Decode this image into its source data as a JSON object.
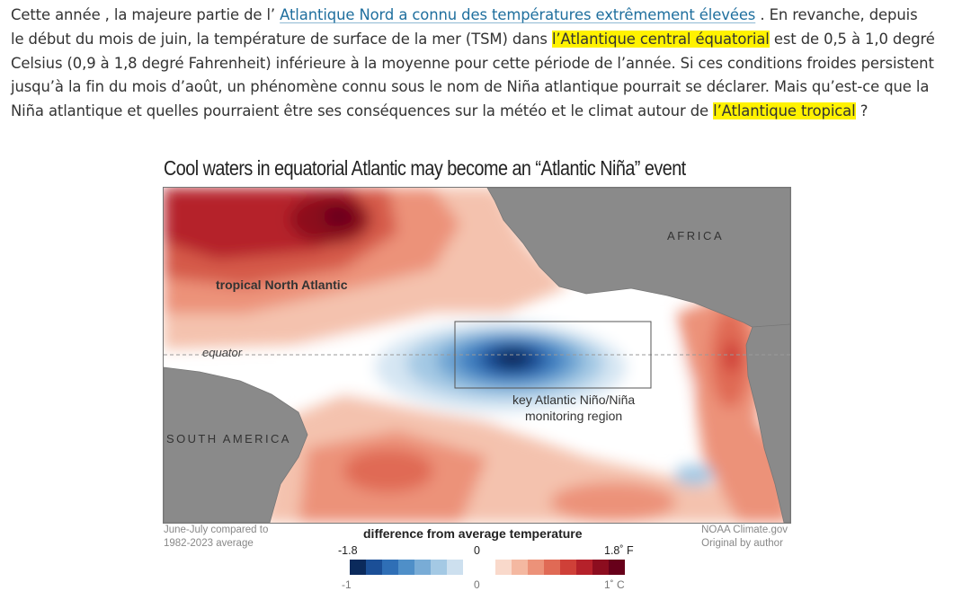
{
  "article": {
    "l1_a": "Cette année , la majeure partie de l’ ",
    "l1_link": "Atlantique Nord a connu des températures extrêmement élevées",
    "l1_b": " . En revanche, depuis",
    "l2_a": "le début du mois de juin, la température de surface de la mer (TSM) dans ",
    "l2_hl": "l’Atlantique central équatorial",
    "l2_b": " est de 0,5 à 1,0 degré",
    "l3": "Celsius (0,9 à 1,8 degré Fahrenheit) inférieure à la moyenne pour cette période de l’année. Si ces conditions froides persistent",
    "l4": "jusqu’à la fin du mois d’août, un phénomène connu sous le nom de Niña atlantique pourrait se déclarer. Mais qu’est-ce que la",
    "l5_a": "Niña atlantique et quelles pourraient être ses conséquences sur la météo et le climat autour de ",
    "l5_hl": "l’Atlantique tropical",
    "l5_b": " ?"
  },
  "figure": {
    "title": "Cool waters in equatorial Atlantic may become an “Atlantic Niña” event",
    "labels": {
      "tropical_north_atlantic": "tropical North Atlantic",
      "africa": "AFRICA",
      "south_america": "SOUTH AMERICA",
      "equator": "equator",
      "key_region_1": "key Atlantic Niño/Niña",
      "key_region_2": "monitoring region"
    },
    "footer_left_1": "June-July compared to",
    "footer_left_2": "1982-2023 average",
    "footer_right_1": "NOAA Climate.gov",
    "footer_right_2": "Original by author",
    "legend": {
      "title": "difference from average temperature",
      "f_min": "-1.8",
      "f_mid": "0",
      "f_max": "1.8˚ F",
      "c_min": "-1",
      "c_mid": "0",
      "c_max": "1˚ C",
      "colors": [
        "#0b2a5c",
        "#1b4f97",
        "#2f6fb6",
        "#4f8fc8",
        "#79acd6",
        "#a4c9e4",
        "#cde0ef",
        "#ffffff",
        "#ffffff",
        "#f9d9cb",
        "#f4b8a1",
        "#ec9279",
        "#e06a55",
        "#cf4038",
        "#b5212a",
        "#8c0d1f",
        "#67001a"
      ]
    },
    "colors": {
      "land": "#8a8a8a",
      "deep_red": "#8c0d1f",
      "deep_blue": "#0b2a5c"
    }
  }
}
